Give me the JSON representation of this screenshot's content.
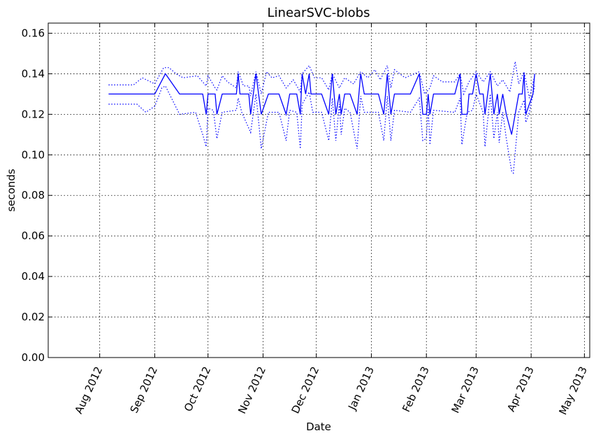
{
  "chart_data": {
    "type": "line",
    "title": "LinearSVC-blobs",
    "xlabel": "Date",
    "ylabel": "seconds",
    "ylim": [
      0,
      0.165
    ],
    "xlim": [
      "2012-07-03",
      "2013-05-04"
    ],
    "grid": true,
    "x_ticks": [
      {
        "date": "2012-08-01",
        "label": "Aug 2012"
      },
      {
        "date": "2012-09-01",
        "label": "Sep 2012"
      },
      {
        "date": "2012-10-01",
        "label": "Oct 2012"
      },
      {
        "date": "2012-11-01",
        "label": "Nov 2012"
      },
      {
        "date": "2012-12-01",
        "label": "Dec 2012"
      },
      {
        "date": "2013-01-01",
        "label": "Jan 2013"
      },
      {
        "date": "2013-02-01",
        "label": "Feb 2013"
      },
      {
        "date": "2013-03-01",
        "label": "Mar 2013"
      },
      {
        "date": "2013-04-01",
        "label": "Apr 2013"
      },
      {
        "date": "2013-05-01",
        "label": "May 2013"
      }
    ],
    "y_ticks": [
      {
        "value": 0.0,
        "label": "0.00"
      },
      {
        "value": 0.02,
        "label": "0.02"
      },
      {
        "value": 0.04,
        "label": "0.04"
      },
      {
        "value": 0.06,
        "label": "0.06"
      },
      {
        "value": 0.08,
        "label": "0.08"
      },
      {
        "value": 0.1,
        "label": "0.10"
      },
      {
        "value": 0.12,
        "label": "0.12"
      },
      {
        "value": 0.14,
        "label": "0.14"
      },
      {
        "value": 0.16,
        "label": "0.16"
      }
    ],
    "series": [
      {
        "style": "solid",
        "color": "#0000ff",
        "points": [
          [
            "2012-08-06",
            0.13
          ],
          [
            "2012-09-01",
            0.13
          ],
          [
            "2012-09-07",
            0.14
          ],
          [
            "2012-09-15",
            0.13
          ],
          [
            "2012-09-28",
            0.13
          ],
          [
            "2012-09-30",
            0.12
          ],
          [
            "2012-10-01",
            0.13
          ],
          [
            "2012-10-05",
            0.13
          ],
          [
            "2012-10-06",
            0.12
          ],
          [
            "2012-10-09",
            0.13
          ],
          [
            "2012-10-17",
            0.13
          ],
          [
            "2012-10-18",
            0.14
          ],
          [
            "2012-10-19",
            0.13
          ],
          [
            "2012-10-24",
            0.13
          ],
          [
            "2012-10-25",
            0.12
          ],
          [
            "2012-10-28",
            0.14
          ],
          [
            "2012-10-31",
            0.12
          ],
          [
            "2012-11-04",
            0.13
          ],
          [
            "2012-11-10",
            0.13
          ],
          [
            "2012-11-14",
            0.12
          ],
          [
            "2012-11-16",
            0.13
          ],
          [
            "2012-11-20",
            0.13
          ],
          [
            "2012-11-22",
            0.12
          ],
          [
            "2012-11-23",
            0.14
          ],
          [
            "2012-11-25",
            0.13
          ],
          [
            "2012-11-27",
            0.14
          ],
          [
            "2012-11-28",
            0.13
          ],
          [
            "2012-12-04",
            0.13
          ],
          [
            "2012-12-08",
            0.12
          ],
          [
            "2012-12-10",
            0.14
          ],
          [
            "2012-12-12",
            0.12
          ],
          [
            "2012-12-14",
            0.13
          ],
          [
            "2012-12-15",
            0.12
          ],
          [
            "2012-12-17",
            0.13
          ],
          [
            "2012-12-20",
            0.13
          ],
          [
            "2012-12-24",
            0.12
          ],
          [
            "2012-12-26",
            0.14
          ],
          [
            "2012-12-28",
            0.13
          ],
          [
            "2013-01-05",
            0.13
          ],
          [
            "2013-01-08",
            0.12
          ],
          [
            "2013-01-10",
            0.14
          ],
          [
            "2013-01-12",
            0.12
          ],
          [
            "2013-01-14",
            0.13
          ],
          [
            "2013-01-23",
            0.13
          ],
          [
            "2013-01-28",
            0.14
          ],
          [
            "2013-01-30",
            0.12
          ],
          [
            "2013-02-01",
            0.12
          ],
          [
            "2013-02-02",
            0.13
          ],
          [
            "2013-02-03",
            0.12
          ],
          [
            "2013-02-05",
            0.13
          ],
          [
            "2013-02-17",
            0.13
          ],
          [
            "2013-02-20",
            0.14
          ],
          [
            "2013-02-21",
            0.12
          ],
          [
            "2013-02-24",
            0.12
          ],
          [
            "2013-02-25",
            0.13
          ],
          [
            "2013-02-27",
            0.13
          ],
          [
            "2013-03-01",
            0.14
          ],
          [
            "2013-03-03",
            0.13
          ],
          [
            "2013-03-05",
            0.13
          ],
          [
            "2013-03-06",
            0.12
          ],
          [
            "2013-03-09",
            0.14
          ],
          [
            "2013-03-11",
            0.12
          ],
          [
            "2013-03-13",
            0.13
          ],
          [
            "2013-03-14",
            0.12
          ],
          [
            "2013-03-16",
            0.13
          ],
          [
            "2013-03-18",
            0.12
          ],
          [
            "2013-03-21",
            0.11
          ],
          [
            "2013-03-23",
            0.12
          ],
          [
            "2013-03-25",
            0.13
          ],
          [
            "2013-03-27",
            0.13
          ],
          [
            "2013-03-28",
            0.14
          ],
          [
            "2013-03-29",
            0.12
          ],
          [
            "2013-03-31",
            0.125
          ],
          [
            "2013-04-02",
            0.13
          ],
          [
            "2013-04-03",
            0.14
          ]
        ]
      },
      {
        "style": "dotted",
        "color": "#0000ff",
        "points": [
          [
            "2012-08-06",
            0.1345
          ],
          [
            "2012-08-20",
            0.1345
          ],
          [
            "2012-08-25",
            0.138
          ],
          [
            "2012-09-01",
            0.135
          ],
          [
            "2012-09-06",
            0.143
          ],
          [
            "2012-09-09",
            0.143
          ],
          [
            "2012-09-13",
            0.14
          ],
          [
            "2012-09-17",
            0.138
          ],
          [
            "2012-09-25",
            0.139
          ],
          [
            "2012-09-30",
            0.134
          ],
          [
            "2012-10-01",
            0.139
          ],
          [
            "2012-10-05",
            0.133
          ],
          [
            "2012-10-06",
            0.132
          ],
          [
            "2012-10-09",
            0.139
          ],
          [
            "2012-10-12",
            0.136
          ],
          [
            "2012-10-17",
            0.133
          ],
          [
            "2012-10-18",
            0.141
          ],
          [
            "2012-10-21",
            0.134
          ],
          [
            "2012-10-24",
            0.134
          ],
          [
            "2012-10-25",
            0.129
          ],
          [
            "2012-10-28",
            0.141
          ],
          [
            "2012-10-31",
            0.13
          ],
          [
            "2012-11-03",
            0.141
          ],
          [
            "2012-11-06",
            0.138
          ],
          [
            "2012-11-10",
            0.139
          ],
          [
            "2012-11-14",
            0.133
          ],
          [
            "2012-11-18",
            0.137
          ],
          [
            "2012-11-22",
            0.131
          ],
          [
            "2012-11-23",
            0.14
          ],
          [
            "2012-11-27",
            0.144
          ],
          [
            "2012-11-30",
            0.138
          ],
          [
            "2012-12-04",
            0.138
          ],
          [
            "2012-12-08",
            0.132
          ],
          [
            "2012-12-10",
            0.14
          ],
          [
            "2012-12-14",
            0.133
          ],
          [
            "2012-12-17",
            0.138
          ],
          [
            "2012-12-22",
            0.135
          ],
          [
            "2012-12-26",
            0.141
          ],
          [
            "2012-12-30",
            0.138
          ],
          [
            "2013-01-03",
            0.142
          ],
          [
            "2013-01-06",
            0.137
          ],
          [
            "2013-01-10",
            0.144
          ],
          [
            "2013-01-12",
            0.133
          ],
          [
            "2013-01-14",
            0.142
          ],
          [
            "2013-01-20",
            0.138
          ],
          [
            "2013-01-28",
            0.141
          ],
          [
            "2013-01-31",
            0.13
          ],
          [
            "2013-02-03",
            0.133
          ],
          [
            "2013-02-05",
            0.139
          ],
          [
            "2013-02-10",
            0.136
          ],
          [
            "2013-02-17",
            0.136
          ],
          [
            "2013-02-20",
            0.14
          ],
          [
            "2013-02-22",
            0.13
          ],
          [
            "2013-02-25",
            0.136
          ],
          [
            "2013-03-01",
            0.141
          ],
          [
            "2013-03-05",
            0.136
          ],
          [
            "2013-03-09",
            0.141
          ],
          [
            "2013-03-13",
            0.134
          ],
          [
            "2013-03-16",
            0.137
          ],
          [
            "2013-03-20",
            0.131
          ],
          [
            "2013-03-23",
            0.146
          ],
          [
            "2013-03-25",
            0.135
          ],
          [
            "2013-03-28",
            0.141
          ],
          [
            "2013-03-31",
            0.128
          ],
          [
            "2013-04-03",
            0.139
          ]
        ]
      },
      {
        "style": "dotted",
        "color": "#0000ff",
        "points": [
          [
            "2012-08-06",
            0.125
          ],
          [
            "2012-08-22",
            0.125
          ],
          [
            "2012-08-27",
            0.121
          ],
          [
            "2012-09-01",
            0.124
          ],
          [
            "2012-09-05",
            0.133
          ],
          [
            "2012-09-07",
            0.134
          ],
          [
            "2012-09-15",
            0.12
          ],
          [
            "2012-09-24",
            0.121
          ],
          [
            "2012-09-28",
            0.11
          ],
          [
            "2012-09-30",
            0.104
          ],
          [
            "2012-10-01",
            0.123
          ],
          [
            "2012-10-04",
            0.122
          ],
          [
            "2012-10-06",
            0.108
          ],
          [
            "2012-10-09",
            0.121
          ],
          [
            "2012-10-17",
            0.122
          ],
          [
            "2012-10-18",
            0.128
          ],
          [
            "2012-10-20",
            0.121
          ],
          [
            "2012-10-25",
            0.111
          ],
          [
            "2012-10-28",
            0.13
          ],
          [
            "2012-10-31",
            0.103
          ],
          [
            "2012-11-04",
            0.121
          ],
          [
            "2012-11-10",
            0.121
          ],
          [
            "2012-11-14",
            0.107
          ],
          [
            "2012-11-16",
            0.122
          ],
          [
            "2012-11-20",
            0.121
          ],
          [
            "2012-11-22",
            0.103
          ],
          [
            "2012-11-23",
            0.125
          ],
          [
            "2012-11-27",
            0.131
          ],
          [
            "2012-11-29",
            0.121
          ],
          [
            "2012-12-04",
            0.121
          ],
          [
            "2012-12-08",
            0.107
          ],
          [
            "2012-12-10",
            0.128
          ],
          [
            "2012-12-12",
            0.107
          ],
          [
            "2012-12-14",
            0.125
          ],
          [
            "2012-12-15",
            0.11
          ],
          [
            "2012-12-17",
            0.123
          ],
          [
            "2012-12-20",
            0.121
          ],
          [
            "2012-12-24",
            0.103
          ],
          [
            "2012-12-26",
            0.129
          ],
          [
            "2012-12-28",
            0.121
          ],
          [
            "2013-01-05",
            0.121
          ],
          [
            "2013-01-08",
            0.107
          ],
          [
            "2013-01-10",
            0.129
          ],
          [
            "2013-01-12",
            0.107
          ],
          [
            "2013-01-14",
            0.122
          ],
          [
            "2013-01-23",
            0.121
          ],
          [
            "2013-01-28",
            0.128
          ],
          [
            "2013-01-30",
            0.107
          ],
          [
            "2013-02-01",
            0.108
          ],
          [
            "2013-02-02",
            0.123
          ],
          [
            "2013-02-03",
            0.105
          ],
          [
            "2013-02-05",
            0.122
          ],
          [
            "2013-02-17",
            0.121
          ],
          [
            "2013-02-20",
            0.128
          ],
          [
            "2013-02-21",
            0.105
          ],
          [
            "2013-02-24",
            0.121
          ],
          [
            "2013-02-27",
            0.122
          ],
          [
            "2013-03-01",
            0.13
          ],
          [
            "2013-03-05",
            0.121
          ],
          [
            "2013-03-06",
            0.104
          ],
          [
            "2013-03-09",
            0.13
          ],
          [
            "2013-03-11",
            0.108
          ],
          [
            "2013-03-13",
            0.121
          ],
          [
            "2013-03-14",
            0.106
          ],
          [
            "2013-03-16",
            0.121
          ],
          [
            "2013-03-18",
            0.108
          ],
          [
            "2013-03-21",
            0.092
          ],
          [
            "2013-03-22",
            0.091
          ],
          [
            "2013-03-25",
            0.121
          ],
          [
            "2013-03-28",
            0.127
          ],
          [
            "2013-03-29",
            0.116
          ],
          [
            "2013-03-31",
            0.121
          ],
          [
            "2013-04-03",
            0.134
          ]
        ]
      }
    ]
  }
}
